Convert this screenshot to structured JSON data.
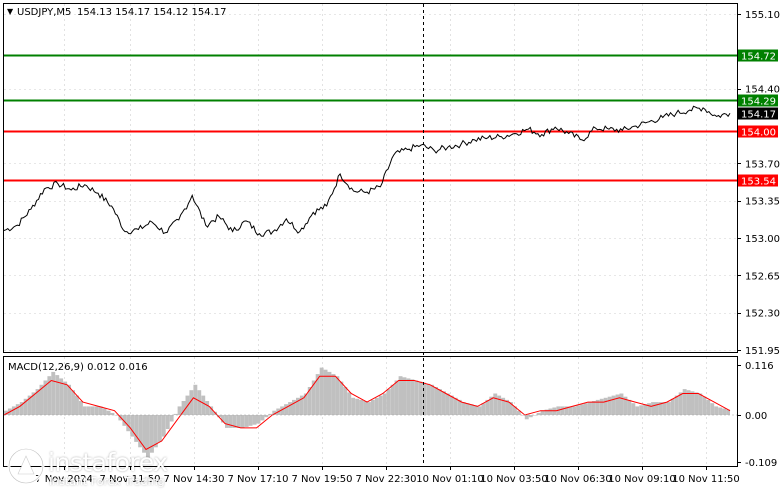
{
  "header": {
    "symbol": "USDJPY,M5",
    "ohlc": "154.13 154.17 154.12 154.17"
  },
  "colors": {
    "price_line": "#000000",
    "support_resistance_red": "#ff0000",
    "target_green": "#008000",
    "current_price_badge": "#000000",
    "macd_histogram": "#c0c0c0",
    "macd_signal": "#ff0000",
    "grid": "#c8c8c8",
    "crosshair": "#000000"
  },
  "price_axis": {
    "ticks": [
      "155.10",
      "154.40",
      "153.70",
      "153.35",
      "153.00",
      "152.65",
      "152.30",
      "151.95"
    ]
  },
  "level_lines": [
    {
      "label": "154.72",
      "price": 154.72,
      "color": "#008000"
    },
    {
      "label": "154.29",
      "price": 154.29,
      "color": "#008000"
    },
    {
      "label": "154.00",
      "price": 154.0,
      "color": "#ff0000"
    },
    {
      "label": "153.54",
      "price": 153.54,
      "color": "#ff0000"
    }
  ],
  "current_price": {
    "label": "154.17",
    "price": 154.17
  },
  "macd": {
    "label": "MACD(12,26,9) 0.012 0.016",
    "ticks": [
      "0.116",
      "0.00",
      "-0.109"
    ]
  },
  "time_axis": {
    "labels": [
      "7 Nov 2024",
      "7 Nov 11:50",
      "7 Nov 14:30",
      "7 Nov 17:10",
      "7 Nov 19:50",
      "7 Nov 22:30",
      "10 Nov 01:10",
      "10 Nov 03:50",
      "10 Nov 06:30",
      "10 Nov 09:10",
      "10 Nov 11:50"
    ]
  },
  "watermark": {
    "name": "instaforex",
    "tagline": "Instant Forex Trading"
  },
  "chart_data": {
    "type": "line",
    "symbol": "USDJPY",
    "timeframe": "M5",
    "ylim": [
      151.95,
      155.1
    ],
    "series": [
      {
        "name": "USDJPY",
        "values": [
          153.07,
          153.12,
          153.27,
          153.46,
          153.51,
          153.45,
          153.5,
          153.42,
          153.3,
          153.06,
          153.08,
          153.15,
          153.05,
          153.17,
          153.4,
          153.12,
          153.2,
          153.06,
          153.16,
          153.04,
          153.06,
          153.18,
          153.06,
          153.24,
          153.3,
          153.6,
          153.44,
          153.43,
          153.48,
          153.78,
          153.83,
          153.87,
          153.82,
          153.85,
          153.88,
          153.92,
          153.94,
          153.95,
          153.98,
          154.02,
          153.97,
          154.04,
          153.98,
          153.92,
          154.03,
          154.02,
          154.01,
          154.05,
          154.09,
          154.13,
          154.17,
          154.2,
          154.22,
          154.14,
          154.17
        ]
      }
    ],
    "macd": {
      "ylim": [
        -0.109,
        0.116
      ],
      "histogram": [
        0.01,
        0.03,
        0.06,
        0.1,
        0.07,
        0.02,
        0.02,
        0.0,
        -0.05,
        -0.1,
        -0.05,
        0.02,
        0.07,
        0.02,
        -0.03,
        -0.03,
        -0.02,
        0.01,
        0.03,
        0.05,
        0.11,
        0.09,
        0.04,
        0.03,
        0.05,
        0.09,
        0.08,
        0.07,
        0.05,
        0.03,
        0.02,
        0.05,
        0.03,
        -0.01,
        0.01,
        0.02,
        0.02,
        0.03,
        0.04,
        0.05,
        0.02,
        0.03,
        0.03,
        0.06,
        0.05,
        0.02,
        0.01
      ],
      "signal": [
        0.0,
        0.02,
        0.05,
        0.08,
        0.07,
        0.03,
        0.02,
        0.01,
        -0.03,
        -0.08,
        -0.06,
        -0.01,
        0.04,
        0.02,
        -0.02,
        -0.03,
        -0.03,
        0.0,
        0.02,
        0.04,
        0.09,
        0.09,
        0.05,
        0.03,
        0.05,
        0.08,
        0.08,
        0.07,
        0.05,
        0.03,
        0.02,
        0.04,
        0.03,
        0.0,
        0.01,
        0.01,
        0.02,
        0.03,
        0.03,
        0.04,
        0.03,
        0.02,
        0.03,
        0.05,
        0.05,
        0.03,
        0.01
      ]
    }
  }
}
